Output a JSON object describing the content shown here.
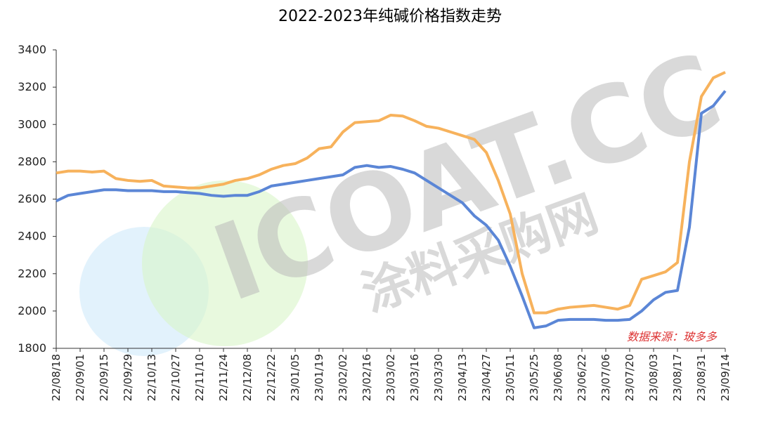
{
  "chart_data": {
    "type": "line",
    "title": "2022-2023年纯碱价格指数走势",
    "categories": [
      "22/08/18",
      null,
      "22/09/01",
      null,
      "22/09/15",
      null,
      "22/09/29",
      null,
      "22/10/13",
      null,
      "22/10/27",
      null,
      "22/11/10",
      null,
      "22/11/24",
      null,
      "22/12/08",
      null,
      "22/12/22",
      null,
      "23/01/05",
      null,
      "23/01/19",
      null,
      "23/02/02",
      null,
      "23/02/16",
      null,
      "23/03/02",
      null,
      "23/03/16",
      null,
      "23/03/30",
      null,
      "23/04/13",
      null,
      "23/04/27",
      null,
      "23/05/11",
      null,
      "23/05/25",
      null,
      "23/06/08",
      null,
      "23/06/22",
      null,
      "23/07/06",
      null,
      "23/07/20",
      null,
      "23/08/03",
      null,
      "23/08/17",
      null,
      "23/08/31",
      null,
      "23/09/14"
    ],
    "series": [
      {
        "color": "#f7b25c",
        "values": [
          2740,
          2750,
          2750,
          2745,
          2750,
          2710,
          2700,
          2695,
          2700,
          2670,
          2665,
          2660,
          2660,
          2670,
          2680,
          2700,
          2710,
          2730,
          2760,
          2780,
          2790,
          2820,
          2870,
          2880,
          2960,
          3010,
          3015,
          3020,
          3050,
          3045,
          3020,
          2990,
          2980,
          2960,
          2940,
          2920,
          2850,
          2700,
          2520,
          2200,
          1990,
          1990,
          2010,
          2020,
          2025,
          2030,
          2020,
          2010,
          2030,
          2170,
          2190,
          2210,
          2260,
          2800,
          3150,
          3250,
          3280
        ]
      },
      {
        "color": "#5b86d6",
        "values": [
          2590,
          2620,
          2630,
          2640,
          2650,
          2650,
          2645,
          2645,
          2645,
          2640,
          2640,
          2635,
          2630,
          2620,
          2615,
          2620,
          2620,
          2640,
          2670,
          2680,
          2690,
          2700,
          2710,
          2720,
          2730,
          2770,
          2780,
          2770,
          2775,
          2760,
          2740,
          2700,
          2660,
          2620,
          2580,
          2510,
          2460,
          2380,
          2240,
          2080,
          1910,
          1920,
          1950,
          1955,
          1955,
          1955,
          1950,
          1950,
          1955,
          2000,
          2060,
          2100,
          2110,
          2450,
          3060,
          3100,
          3180
        ]
      }
    ],
    "ylim": [
      1800,
      3400
    ],
    "yticks": [
      1800,
      2000,
      2200,
      2400,
      2600,
      2800,
      3000,
      3200,
      3400
    ],
    "annotation": "数据来源：玻多多",
    "watermark": "ICOAT.CC",
    "watermark_sub": "涂料采购网"
  }
}
